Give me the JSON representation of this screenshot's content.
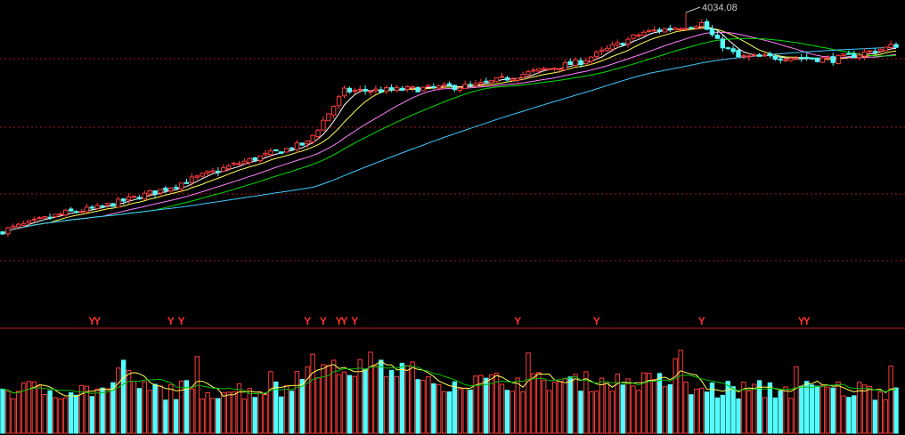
{
  "colors": {
    "background": "#000000",
    "up": "#ff3b3b",
    "down": "#54fcfc",
    "grid": "#a01818",
    "separator": "#c82020",
    "ma5": "#ffffff",
    "ma10": "#ffff54",
    "ma20": "#ff80ff",
    "ma30": "#00e000",
    "ma60": "#40c8ff",
    "vol_ma1": "#ffff54",
    "vol_ma2": "#00c000",
    "signal": "#ff3030",
    "annotation": "#c8c8c8"
  },
  "chart_data": [
    {
      "type": "candlestick",
      "title": "",
      "annotations": [
        {
          "label": "4034.08",
          "value": 4034.08,
          "marks": "high"
        }
      ],
      "candles": [],
      "series": [
        {
          "key": "ma5",
          "period": 5
        },
        {
          "key": "ma10",
          "period": 10
        },
        {
          "key": "ma20",
          "period": 20
        },
        {
          "key": "ma30",
          "period": 30
        },
        {
          "key": "ma60",
          "period": 60
        }
      ],
      "grid": true
    },
    {
      "type": "bar",
      "title": "",
      "signal_label": "Y",
      "signal_bars": [
        17,
        18,
        32,
        34,
        58,
        61,
        64,
        65,
        67,
        98,
        113,
        133,
        152,
        153
      ],
      "volume": [],
      "series": [
        {
          "key": "vol_ma1",
          "period": 5
        },
        {
          "key": "vol_ma2",
          "period": 10
        }
      ]
    }
  ]
}
